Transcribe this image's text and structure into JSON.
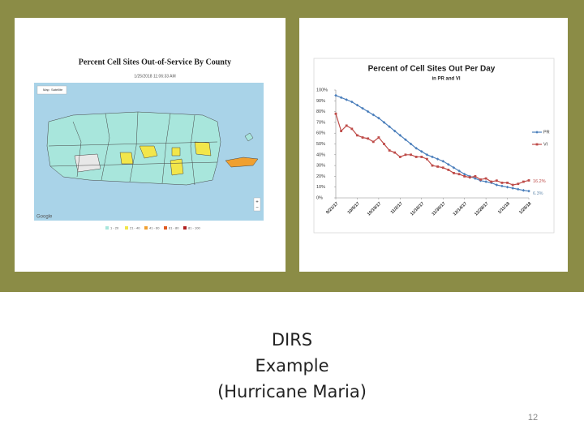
{
  "map_panel": {
    "title": "Percent Cell Sites Out-of-Service By County",
    "timestamp": "1/25/2018 11:06:33 AM",
    "controls": [
      "Map",
      "Satellite"
    ],
    "attribution": "Google",
    "zoom": [
      "+",
      "−"
    ],
    "legend": [
      {
        "label": "1 - 20",
        "color": "#a8e6dc"
      },
      {
        "label": "21 - 40",
        "color": "#f2e64a"
      },
      {
        "label": "41 - 60",
        "color": "#f0a030"
      },
      {
        "label": "61 - 80",
        "color": "#e05a20"
      },
      {
        "label": "81 - 100",
        "color": "#b02020"
      }
    ]
  },
  "chart_data": {
    "type": "line",
    "title": "Percent of Cell Sites Out Per Day",
    "subtitle": "in PR and VI",
    "categories": [
      "9/21/17",
      null,
      null,
      null,
      "10/5/17",
      null,
      null,
      null,
      "10/19/17",
      null,
      null,
      null,
      "11/2/17",
      null,
      null,
      null,
      "11/16/17",
      null,
      null,
      null,
      "11/30/17",
      null,
      null,
      null,
      "12/14/17",
      null,
      null,
      null,
      "12/28/17",
      null,
      null,
      null,
      "1/11/18",
      null,
      null,
      null,
      "1/25/18"
    ],
    "series": [
      {
        "name": "PR",
        "color": "#4a7ebb",
        "values": [
          95,
          93,
          91,
          89,
          86,
          83,
          80,
          77,
          74,
          70,
          66,
          62,
          58,
          54,
          50,
          46,
          43,
          40,
          38,
          36,
          34,
          31,
          28,
          25,
          22,
          20,
          18,
          16,
          15,
          14,
          12,
          11,
          10,
          9,
          8,
          7,
          6.3
        ]
      },
      {
        "name": "VI",
        "color": "#be4b48",
        "values": [
          78,
          62,
          67,
          64,
          58,
          56,
          55,
          52,
          56,
          50,
          44,
          42,
          38,
          40,
          40,
          38,
          38,
          36,
          30,
          29,
          28,
          26,
          23,
          22,
          20,
          19,
          20,
          17,
          18,
          15,
          16,
          14,
          14,
          12,
          13,
          15,
          16.2
        ]
      }
    ],
    "ylim": [
      0,
      100
    ],
    "yticks": [
      {
        "value": 0,
        "label": "0%"
      },
      {
        "value": 10,
        "label": "10%"
      },
      {
        "value": 20,
        "label": "20%"
      },
      {
        "value": 30,
        "label": "30%"
      },
      {
        "value": 40,
        "label": "40%"
      },
      {
        "value": 50,
        "label": "50%"
      },
      {
        "value": 60,
        "label": "60%"
      },
      {
        "value": 70,
        "label": "70%"
      },
      {
        "value": 80,
        "label": "80%"
      },
      {
        "value": 90,
        "label": "90%"
      },
      {
        "value": 100,
        "label": "100%"
      }
    ],
    "grid": false,
    "legend": "right",
    "annotations": [
      "16.2%",
      "6.3%"
    ]
  },
  "caption": [
    "DIRS",
    "Example",
    "(Hurricane Maria)"
  ],
  "page_number": "12"
}
